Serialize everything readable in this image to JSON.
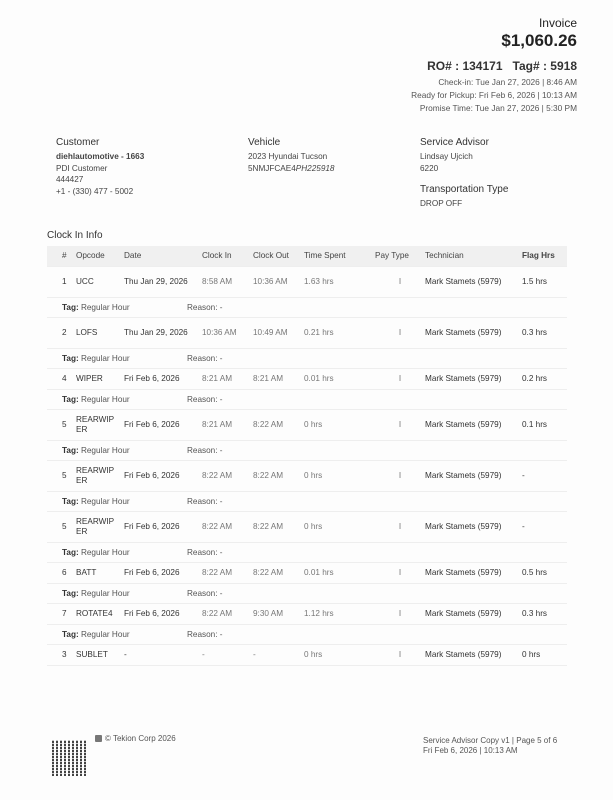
{
  "header": {
    "title": "Invoice",
    "amount": "$1,060.26",
    "ro_label": "RO# : 134171",
    "tag_label": "Tag# : 5918",
    "check_in": "Check-in: Tue Jan 27, 2026 | 8:46 AM",
    "ready_pickup": "Ready for Pickup: Fri Feb 6, 2026 | 10:13 AM",
    "promise_time": "Promise Time: Tue Jan 27, 2026 | 5:30 PM"
  },
  "customer": {
    "heading": "Customer",
    "name": "diehlautomotive - 1663",
    "type": "PDI Customer",
    "id": "444427",
    "phone": "+1 - (330) 477 - 5002"
  },
  "vehicle": {
    "heading": "Vehicle",
    "model": "2023 Hyundai Tucson",
    "vin_prefix": "5NMJFCAE4",
    "vin_suffix": "PH225918"
  },
  "advisor": {
    "heading": "Service Advisor",
    "name": "Lindsay Ujcich",
    "id": "6220",
    "transport_heading": "Transportation Type",
    "transport": "DROP OFF"
  },
  "clock_in": {
    "title": "Clock In Info",
    "columns": [
      "#",
      "Opcode",
      "Date",
      "Clock In",
      "Clock Out",
      "Time Spent",
      "Pay Type",
      "Technician",
      "Flag Hrs"
    ],
    "rows": [
      {
        "num": "1",
        "opcode": "UCC",
        "date": "Thu Jan 29, 2026",
        "in": "8:58 AM",
        "out": "10:36 AM",
        "spent": "1.63 hrs",
        "pay": "I",
        "tech": "Mark Stamets (5979)",
        "flag": "1.5 hrs",
        "tag": "Regular Hour",
        "reason": "Reason: -"
      },
      {
        "num": "2",
        "opcode": "LOFS",
        "date": "Thu Jan 29, 2026",
        "in": "10:36 AM",
        "out": "10:49 AM",
        "spent": "0.21 hrs",
        "pay": "I",
        "tech": "Mark Stamets (5979)",
        "flag": "0.3 hrs",
        "tag": "Regular Hour",
        "reason": "Reason: -"
      },
      {
        "num": "4",
        "opcode": "WIPER",
        "date": "Fri Feb 6, 2026",
        "in": "8:21 AM",
        "out": "8:21 AM",
        "spent": "0.01 hrs",
        "pay": "I",
        "tech": "Mark Stamets (5979)",
        "flag": "0.2 hrs",
        "tag": "Regular Hour",
        "reason": "Reason: -"
      },
      {
        "num": "5",
        "opcode": "REARWIPER",
        "date": "Fri Feb 6, 2026",
        "in": "8:21 AM",
        "out": "8:22 AM",
        "spent": "0 hrs",
        "pay": "I",
        "tech": "Mark Stamets (5979)",
        "flag": "0.1 hrs",
        "tag": "Regular Hour",
        "reason": "Reason: -"
      },
      {
        "num": "5",
        "opcode": "REARWIPER",
        "date": "Fri Feb 6, 2026",
        "in": "8:22 AM",
        "out": "8:22 AM",
        "spent": "0 hrs",
        "pay": "I",
        "tech": "Mark Stamets (5979)",
        "flag": "-",
        "tag": "Regular Hour",
        "reason": "Reason: -"
      },
      {
        "num": "5",
        "opcode": "REARWIPER",
        "date": "Fri Feb 6, 2026",
        "in": "8:22 AM",
        "out": "8:22 AM",
        "spent": "0 hrs",
        "pay": "I",
        "tech": "Mark Stamets (5979)",
        "flag": "-",
        "tag": "Regular Hour",
        "reason": "Reason: -"
      },
      {
        "num": "6",
        "opcode": "BATT",
        "date": "Fri Feb 6, 2026",
        "in": "8:22 AM",
        "out": "8:22 AM",
        "spent": "0.01 hrs",
        "pay": "I",
        "tech": "Mark Stamets (5979)",
        "flag": "0.5 hrs",
        "tag": "Regular Hour",
        "reason": "Reason: -"
      },
      {
        "num": "7",
        "opcode": "ROTATE4",
        "date": "Fri Feb 6, 2026",
        "in": "8:22 AM",
        "out": "9:30 AM",
        "spent": "1.12 hrs",
        "pay": "I",
        "tech": "Mark Stamets (5979)",
        "flag": "0.3 hrs",
        "tag": "Regular Hour",
        "reason": "Reason: -"
      },
      {
        "num": "3",
        "opcode": "SUBLET",
        "date": "-",
        "in": "-",
        "out": "-",
        "spent": "0 hrs",
        "pay": "I",
        "tech": "Mark Stamets (5979)",
        "flag": "0 hrs"
      }
    ],
    "tag_label": "Tag:"
  },
  "footer": {
    "copyright": "© Tekion Corp 2026",
    "copy_info": "Service Advisor Copy v1 | Page 5 of 6",
    "printed": "Fri Feb 6, 2026 | 10:13 AM"
  }
}
